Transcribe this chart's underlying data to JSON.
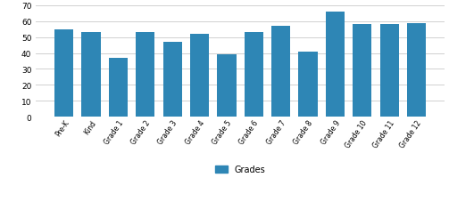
{
  "categories": [
    "Pre-K",
    "Kind",
    "Grade 1",
    "Grade 2",
    "Grade 3",
    "Grade 4",
    "Grade 5",
    "Grade 6",
    "Grade 7",
    "Grade 8",
    "Grade 9",
    "Grade 10",
    "Grade 11",
    "Grade 12"
  ],
  "values": [
    55,
    53,
    37,
    53,
    47,
    52,
    39,
    53,
    57,
    41,
    66,
    58,
    58,
    59
  ],
  "bar_color": "#2e86b5",
  "ylim": [
    0,
    70
  ],
  "yticks": [
    0,
    10,
    20,
    30,
    40,
    50,
    60,
    70
  ],
  "legend_label": "Grades",
  "grid_color": "#d0d0d0",
  "background_color": "#ffffff"
}
